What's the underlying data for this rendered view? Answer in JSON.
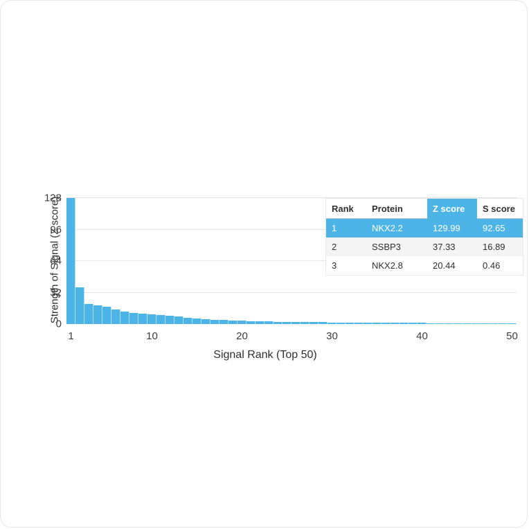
{
  "page": {
    "background_color": "#ffffff",
    "accent_color": "#4db4e8"
  },
  "chart_data": {
    "type": "bar",
    "title": "",
    "xlabel": "Signal Rank (Top 50)",
    "ylabel": "Strength of Signal (Z score)",
    "x_ticks": [
      1,
      10,
      20,
      30,
      40,
      50
    ],
    "y_ticks": [
      0,
      32,
      64,
      96,
      128
    ],
    "xlim": [
      1,
      50
    ],
    "ylim": [
      0,
      128
    ],
    "grid": true,
    "bar_color": "#4db4e8",
    "x": [
      1,
      2,
      3,
      4,
      5,
      6,
      7,
      8,
      9,
      10,
      11,
      12,
      13,
      14,
      15,
      16,
      17,
      18,
      19,
      20,
      21,
      22,
      23,
      24,
      25,
      26,
      27,
      28,
      29,
      30,
      31,
      32,
      33,
      34,
      35,
      36,
      37,
      38,
      39,
      40,
      41,
      42,
      43,
      44,
      45,
      46,
      47,
      48,
      49,
      50
    ],
    "values": [
      129.99,
      37.33,
      20.44,
      19.2,
      17.6,
      14.8,
      12.6,
      11.2,
      10.3,
      9.6,
      9.0,
      8.4,
      7.6,
      6.6,
      5.6,
      5.0,
      4.5,
      4.0,
      3.6,
      3.3,
      3.0,
      2.8,
      2.6,
      2.4,
      2.2,
      2.1,
      2.0,
      1.9,
      1.8,
      1.7,
      1.6,
      1.5,
      1.45,
      1.4,
      1.35,
      1.3,
      1.25,
      1.2,
      1.15,
      1.1,
      1.05,
      1.0,
      0.95,
      0.9,
      0.85,
      0.8,
      0.78,
      0.75,
      0.72,
      0.7
    ]
  },
  "table": {
    "headers": [
      "Rank",
      "Protein",
      "Z score",
      "S score"
    ],
    "highlighted_header": "Z score",
    "highlight_color": "#4db4e8",
    "rows": [
      {
        "rank": "1",
        "protein": "NKX2.2",
        "z_score": "129.99",
        "s_score": "92.65",
        "highlighted": true
      },
      {
        "rank": "2",
        "protein": "SSBP3",
        "z_score": "37.33",
        "s_score": "16.89",
        "highlighted": false
      },
      {
        "rank": "3",
        "protein": "NKX2.8",
        "z_score": "20.44",
        "s_score": "0.46",
        "highlighted": false
      }
    ]
  }
}
